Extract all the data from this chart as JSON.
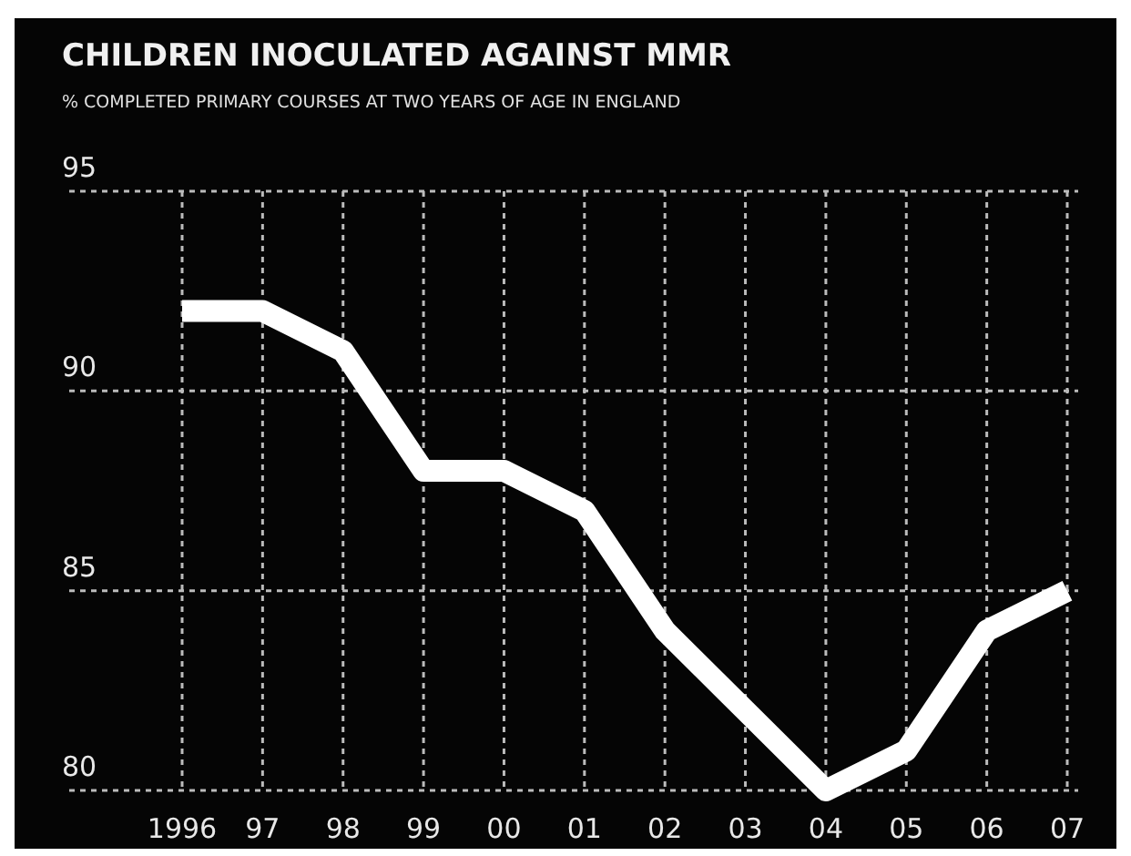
{
  "chart_data": {
    "type": "line",
    "title": "CHILDREN INOCULATED AGAINST MMR",
    "subtitle": "% COMPLETED PRIMARY COURSES AT TWO YEARS OF AGE IN ENGLAND",
    "categories": [
      "1996",
      "97",
      "98",
      "99",
      "00",
      "01",
      "02",
      "03",
      "04",
      "05",
      "06",
      "07"
    ],
    "series": [
      {
        "color": "#ffffff",
        "values": [
          92,
          92,
          91,
          88,
          88,
          87,
          84,
          82,
          80,
          81,
          84,
          85
        ]
      }
    ],
    "ylim": [
      80,
      95
    ],
    "yticks": [
      80,
      85,
      90,
      95
    ],
    "grid": true,
    "marker": "none",
    "line_style": "solid"
  }
}
